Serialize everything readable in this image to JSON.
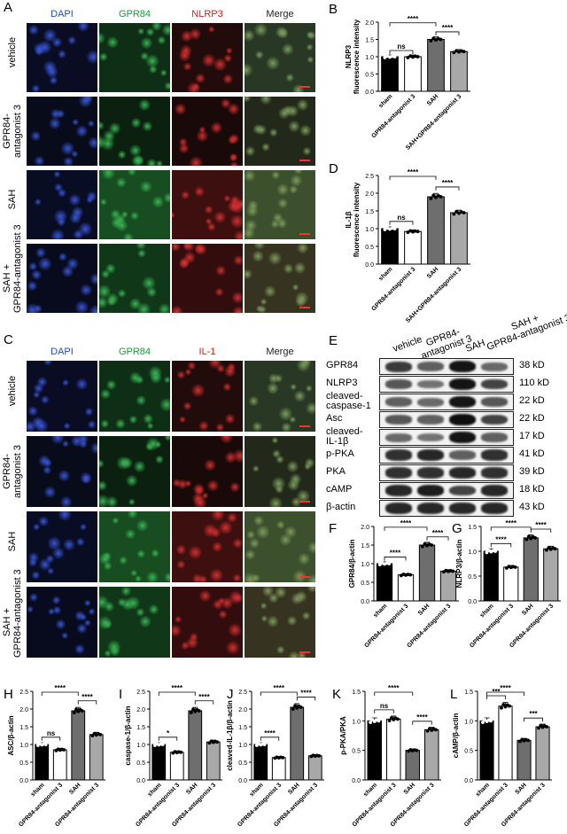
{
  "panels": {
    "A": {
      "letter": "A",
      "columns": [
        "DAPI",
        "GPR84",
        "NLRP3",
        "Merge"
      ],
      "column_colors": [
        "#1f4fbf",
        "#1a9a3a",
        "#d11f1f",
        "#222222"
      ],
      "rows": [
        "vehicle",
        "GPR84-\nantagonist 3",
        "SAH",
        "SAH +\nGPR84-antagonist 3"
      ]
    },
    "C": {
      "letter": "C",
      "columns": [
        "DAPI",
        "GPR84",
        "IL-1",
        "Merge"
      ],
      "column_colors": [
        "#1f4fbf",
        "#1a9a3a",
        "#d11f1f",
        "#222222"
      ],
      "rows": [
        "vehicle",
        "GPR84-\nantagonist 3",
        "SAH",
        "SAH +\nGPR84-antagonist 3"
      ]
    },
    "E": {
      "letter": "E",
      "lanes": [
        "vehicle",
        "GPR84-\nantagonist 3",
        "SAH",
        "SAH +\nGPR84-antagonist 3"
      ],
      "rows": [
        {
          "name": "GPR84",
          "kd": "38 kD",
          "intensity": [
            0.75,
            0.55,
            0.95,
            0.5
          ]
        },
        {
          "name": "NLRP3",
          "kd": "110 kD",
          "intensity": [
            0.6,
            0.45,
            0.95,
            0.7
          ]
        },
        {
          "name": "cleaved-\ncaspase-1",
          "kd": "22 kD",
          "intensity": [
            0.55,
            0.5,
            0.95,
            0.6
          ]
        },
        {
          "name": "Asc",
          "kd": "22 kD",
          "intensity": [
            0.6,
            0.55,
            0.98,
            0.7
          ]
        },
        {
          "name": "cleaved-\nIL-1β",
          "kd": "17 kD",
          "intensity": [
            0.5,
            0.45,
            0.95,
            0.55
          ]
        },
        {
          "name": "p-PKA",
          "kd": "41 kD",
          "intensity": [
            0.8,
            0.85,
            0.55,
            0.8
          ]
        },
        {
          "name": "PKA",
          "kd": "39 kD",
          "intensity": [
            0.8,
            0.8,
            0.85,
            0.8
          ]
        },
        {
          "name": "cAMP",
          "kd": "18 kD",
          "intensity": [
            0.85,
            0.9,
            0.7,
            0.85
          ]
        },
        {
          "name": "β-actin",
          "kd": "43 kD",
          "intensity": [
            0.85,
            0.85,
            0.85,
            0.85
          ]
        }
      ]
    }
  },
  "chart_data": [
    {
      "panel": "B",
      "type": "bar",
      "ylabel": "NLRP3\nfluorescence intensity",
      "categories": [
        "sham",
        "GPR84-antagonist 3",
        "SAH",
        "SAH+GPR84-antagonist 3"
      ],
      "values": [
        1.0,
        1.0,
        1.5,
        1.15
      ],
      "ylim": [
        0,
        2.0
      ],
      "yticks": [
        "0.0",
        "0.5",
        "1.0",
        "1.5",
        "2.0"
      ],
      "comparisons": [
        {
          "pair": [
            0,
            1
          ],
          "label": "ns"
        },
        {
          "pair": [
            0,
            2
          ],
          "label": "****"
        },
        {
          "pair": [
            2,
            3
          ],
          "label": "****"
        }
      ]
    },
    {
      "panel": "D",
      "type": "bar",
      "ylabel": "IL-1β\nfluorescence intensity",
      "categories": [
        "sham",
        "GPR84-antagonist 3",
        "SAH",
        "SAH+GPR84-antagonist 3"
      ],
      "values": [
        1.0,
        0.92,
        1.9,
        1.45
      ],
      "ylim": [
        0,
        2.5
      ],
      "yticks": [
        "0.0",
        "0.5",
        "1.0",
        "1.5",
        "2.0",
        "2.5"
      ],
      "comparisons": [
        {
          "pair": [
            0,
            1
          ],
          "label": "ns"
        },
        {
          "pair": [
            0,
            2
          ],
          "label": "****"
        },
        {
          "pair": [
            2,
            3
          ],
          "label": "****"
        }
      ]
    },
    {
      "panel": "F",
      "type": "bar",
      "ylabel": "GPR84/β-actin",
      "categories": [
        "sham",
        "GPR84-antagonist 3",
        "SAH",
        "GPR84-antagonist 3"
      ],
      "values": [
        1.0,
        0.7,
        1.5,
        0.8
      ],
      "ylim": [
        0,
        2.0
      ],
      "yticks": [
        "0.0",
        "0.5",
        "1.0",
        "1.5",
        "2.0"
      ],
      "comparisons": [
        {
          "pair": [
            0,
            1
          ],
          "label": "****"
        },
        {
          "pair": [
            0,
            2
          ],
          "label": "****"
        },
        {
          "pair": [
            2,
            3
          ],
          "label": "****"
        }
      ]
    },
    {
      "panel": "G",
      "type": "bar",
      "ylabel": "NLRP3/β-actin",
      "categories": [
        "sham",
        "GPR84-antagonist 3",
        "SAH",
        "GPR84-antagonist 3"
      ],
      "values": [
        1.0,
        0.68,
        1.27,
        1.05
      ],
      "ylim": [
        0,
        1.5
      ],
      "yticks": [
        "0.0",
        "0.5",
        "1.0",
        "1.5"
      ],
      "comparisons": [
        {
          "pair": [
            0,
            1
          ],
          "label": "****"
        },
        {
          "pair": [
            0,
            2
          ],
          "label": "****"
        },
        {
          "pair": [
            2,
            3
          ],
          "label": "****"
        }
      ]
    },
    {
      "panel": "H",
      "type": "bar",
      "ylabel": "ASC/β-actin",
      "categories": [
        "sham",
        "GPR84-antagonist 3",
        "SAH",
        "GPR84-antagonist 3"
      ],
      "values": [
        1.0,
        0.85,
        1.95,
        1.28
      ],
      "ylim": [
        0,
        2.5
      ],
      "yticks": [
        "0.0",
        "0.5",
        "1.0",
        "1.5",
        "2.0",
        "2.5"
      ],
      "comparisons": [
        {
          "pair": [
            0,
            1
          ],
          "label": "ns"
        },
        {
          "pair": [
            0,
            2
          ],
          "label": "****"
        },
        {
          "pair": [
            2,
            3
          ],
          "label": "****"
        }
      ]
    },
    {
      "panel": "I",
      "type": "bar",
      "ylabel": "caspase-1/β-actin",
      "categories": [
        "sham",
        "GPR84-antagonist 3",
        "SAH",
        "GPR84-antagonist 3"
      ],
      "values": [
        1.0,
        0.78,
        1.95,
        1.07
      ],
      "ylim": [
        0,
        2.5
      ],
      "yticks": [
        "0.0",
        "0.5",
        "1.0",
        "1.5",
        "2.0",
        "2.5"
      ],
      "comparisons": [
        {
          "pair": [
            0,
            1
          ],
          "label": "*"
        },
        {
          "pair": [
            0,
            2
          ],
          "label": "****"
        },
        {
          "pair": [
            2,
            3
          ],
          "label": "****"
        }
      ]
    },
    {
      "panel": "J",
      "type": "bar",
      "ylabel": "cleaved-IL-1β/β-actin",
      "categories": [
        "sham",
        "GPR84-antagonist 3",
        "SAH",
        "GPR84-antagonist 3"
      ],
      "values": [
        1.0,
        0.63,
        2.05,
        0.68
      ],
      "ylim": [
        0,
        2.5
      ],
      "yticks": [
        "0.0",
        "0.5",
        "1.0",
        "1.5",
        "2.0",
        "2.5"
      ],
      "comparisons": [
        {
          "pair": [
            0,
            1
          ],
          "label": "****"
        },
        {
          "pair": [
            0,
            2
          ],
          "label": "****"
        },
        {
          "pair": [
            2,
            3
          ],
          "label": "****"
        }
      ]
    },
    {
      "panel": "K",
      "type": "bar",
      "ylabel": "p-PKA/PKA",
      "categories": [
        "sham",
        "GPR84-antagonist 3",
        "SAH",
        "GPR84-antagonist 3"
      ],
      "values": [
        1.0,
        1.03,
        0.5,
        0.85
      ],
      "ylim": [
        0,
        1.5
      ],
      "yticks": [
        "0.0",
        "0.5",
        "1.0",
        "1.5"
      ],
      "comparisons": [
        {
          "pair": [
            0,
            1
          ],
          "label": "ns"
        },
        {
          "pair": [
            0,
            2
          ],
          "label": "****"
        },
        {
          "pair": [
            2,
            3
          ],
          "label": "****"
        }
      ]
    },
    {
      "panel": "L",
      "type": "bar",
      "ylabel": "cAMP/β-actin",
      "categories": [
        "sham",
        "GPR84-antagonist 3",
        "SAH",
        "GPR84-antagonist 3"
      ],
      "values": [
        1.0,
        1.25,
        0.67,
        0.9
      ],
      "ylim": [
        0,
        1.5
      ],
      "yticks": [
        "0.0",
        "0.5",
        "1.0",
        "1.5"
      ],
      "comparisons": [
        {
          "pair": [
            0,
            1
          ],
          "label": "***"
        },
        {
          "pair": [
            0,
            2
          ],
          "label": "****"
        },
        {
          "pair": [
            2,
            3
          ],
          "label": "***"
        }
      ]
    }
  ],
  "bar_colors": [
    "#000000",
    "#ffffff",
    "#6e6e6e",
    "#a8a8a8"
  ]
}
